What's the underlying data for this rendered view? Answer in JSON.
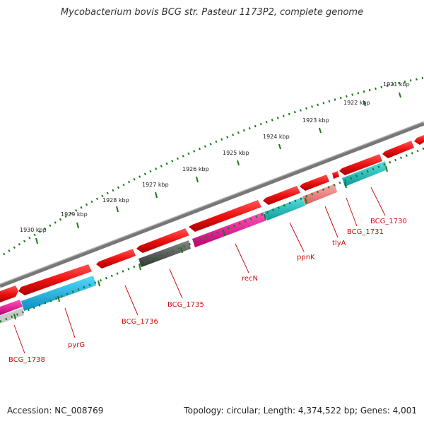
{
  "title": "Mycobacterium bovis BCG str. Pasteur 1173P2, complete genome",
  "footer": {
    "accession": "Accession: NC_008769",
    "summary": "Topology: circular; Length: 4,374,522 bp; Genes: 4,001"
  },
  "colors": {
    "forward_cds": "#ee1111",
    "reverse_cds": "#19b8e0",
    "teal_cds": "#18c0c0",
    "pink_cds": "#ee1199",
    "gray_cds": "#555555",
    "salmon_cds": "#f08080",
    "backbone": "#777777",
    "ticks": "#1a7a1a",
    "label": "#cc1111"
  },
  "scale_labels": [
    "1921 kbp",
    "1922 kbp",
    "1923 kbp",
    "1924 kbp",
    "1925 kbp",
    "1926 kbp",
    "1927 kbp",
    "1928 kbp",
    "1929 kbp",
    "1930 kbp"
  ],
  "gene_labels": [
    "BCG_1730",
    "BCG_1731",
    "tlyA",
    "ppnK",
    "recN",
    "BCG_1735",
    "BCG_1736",
    "pyrG",
    "BCG_1738"
  ]
}
